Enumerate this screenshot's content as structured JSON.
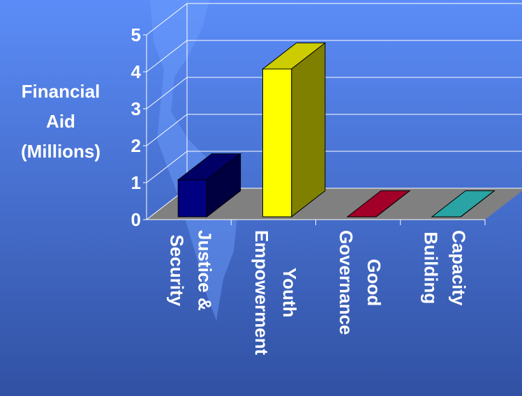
{
  "chart_data": {
    "type": "bar3d",
    "y_label": "Financial\nAid\n(Millions)",
    "categories": [
      "Justice &\nSecurity",
      "Youth\nEmpowerment",
      "Good\nGovernance",
      "Capacity\nBuilding"
    ],
    "values": [
      1,
      4,
      0,
      0
    ],
    "colors": [
      "#000080",
      "#ffff00",
      "#cc0033",
      "#33cccc"
    ],
    "ylim": [
      0,
      5
    ],
    "yticks": [
      0,
      1,
      2,
      3,
      4,
      5
    ],
    "grid": true
  }
}
